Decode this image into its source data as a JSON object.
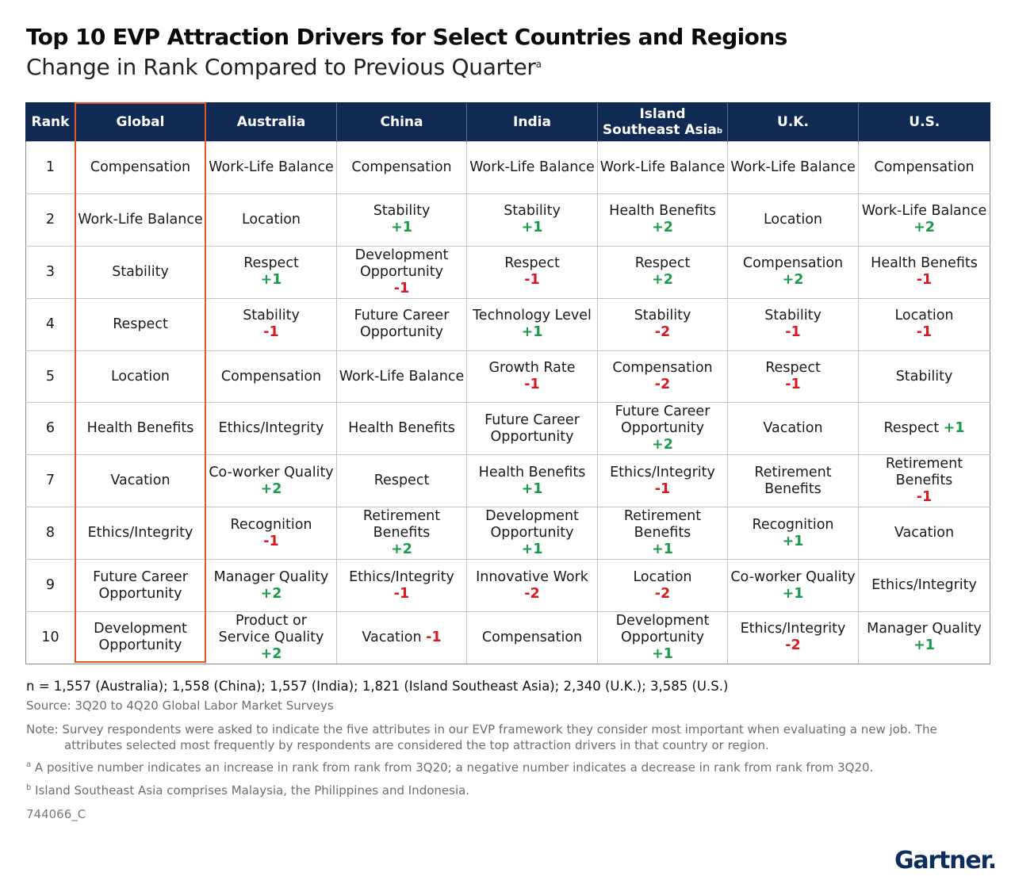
{
  "title": "Top 10 EVP Attraction Drivers for Select Countries and Regions",
  "subtitle": "Change in Rank Compared to Previous Quarter",
  "subtitle_marker": "a",
  "headers": [
    "Rank",
    "Global",
    "Australia",
    "China",
    "India",
    "Island Southeast Asia",
    "U.K.",
    "U.S."
  ],
  "header_isa_line1": "Island",
  "header_isa_line2": "Southeast Asia",
  "header_isa_marker": "b",
  "rows": [
    {
      "rank": "1",
      "global": "Compensation",
      "cells": [
        {
          "text": "Work-Life Balance",
          "change": ""
        },
        {
          "text": "Compensation",
          "change": ""
        },
        {
          "text": "Work-Life Balance",
          "change": ""
        },
        {
          "text": "Work-Life Balance",
          "change": ""
        },
        {
          "text": "Work-Life Balance",
          "change": ""
        },
        {
          "text": "Compensation",
          "change": ""
        }
      ]
    },
    {
      "rank": "2",
      "global": "Work-Life Balance",
      "cells": [
        {
          "text": "Location",
          "change": ""
        },
        {
          "text": "Stability",
          "change": "+1"
        },
        {
          "text": "Stability",
          "change": "+1"
        },
        {
          "text": "Health Benefits",
          "change": "+2"
        },
        {
          "text": "Location",
          "change": ""
        },
        {
          "text": "Work-Life Balance",
          "change": "+2"
        }
      ]
    },
    {
      "rank": "3",
      "global": "Stability",
      "cells": [
        {
          "text": "Respect",
          "change": "+1"
        },
        {
          "text": "Development Opportunity",
          "change": "-1"
        },
        {
          "text": "Respect",
          "change": "-1"
        },
        {
          "text": "Respect",
          "change": "+2"
        },
        {
          "text": "Compensation",
          "change": "+2"
        },
        {
          "text": "Health Benefits",
          "change": "-1"
        }
      ]
    },
    {
      "rank": "4",
      "global": "Respect",
      "cells": [
        {
          "text": "Stability",
          "change": "-1"
        },
        {
          "text": "Future Career Opportunity",
          "change": ""
        },
        {
          "text": "Technology Level",
          "change": "+1"
        },
        {
          "text": "Stability",
          "change": "-2"
        },
        {
          "text": "Stability",
          "change": "-1"
        },
        {
          "text": "Location",
          "change": "-1"
        }
      ]
    },
    {
      "rank": "5",
      "global": "Location",
      "cells": [
        {
          "text": "Compensation",
          "change": ""
        },
        {
          "text": "Work-Life Balance",
          "change": ""
        },
        {
          "text": "Growth Rate",
          "change": "-1"
        },
        {
          "text": "Compensation",
          "change": "-2"
        },
        {
          "text": "Respect",
          "change": "-1"
        },
        {
          "text": "Stability",
          "change": ""
        }
      ]
    },
    {
      "rank": "6",
      "global": "Health Benefits",
      "cells": [
        {
          "text": "Ethics/Integrity",
          "change": ""
        },
        {
          "text": "Health Benefits",
          "change": ""
        },
        {
          "text": "Future Career Opportunity",
          "change": ""
        },
        {
          "text": "Future Career Opportunity",
          "change": "+2"
        },
        {
          "text": "Vacation",
          "change": ""
        },
        {
          "text": "Respect",
          "change": "+1",
          "inline": true
        }
      ]
    },
    {
      "rank": "7",
      "global": "Vacation",
      "cells": [
        {
          "text": "Co-worker Quality",
          "change": "+2"
        },
        {
          "text": "Respect",
          "change": ""
        },
        {
          "text": "Health Benefits",
          "change": "+1"
        },
        {
          "text": "Ethics/Integrity",
          "change": "-1"
        },
        {
          "text": "Retirement Benefits",
          "change": ""
        },
        {
          "text": "Retirement Benefits",
          "change": "-1"
        }
      ]
    },
    {
      "rank": "8",
      "global": "Ethics/Integrity",
      "cells": [
        {
          "text": "Recognition",
          "change": "-1"
        },
        {
          "text": "Retirement Benefits",
          "change": "+2"
        },
        {
          "text": "Development Opportunity",
          "change": "+1"
        },
        {
          "text": "Retirement Benefits",
          "change": "+1"
        },
        {
          "text": "Recognition",
          "change": "+1"
        },
        {
          "text": "Vacation",
          "change": ""
        }
      ]
    },
    {
      "rank": "9",
      "global": "Future Career Opportunity",
      "cells": [
        {
          "text": "Manager Quality",
          "change": "+2"
        },
        {
          "text": "Ethics/Integrity",
          "change": "-1"
        },
        {
          "text": "Innovative Work",
          "change": "-2"
        },
        {
          "text": "Location",
          "change": "-2"
        },
        {
          "text": "Co-worker Quality",
          "change": "+1"
        },
        {
          "text": "Ethics/Integrity",
          "change": ""
        }
      ]
    },
    {
      "rank": "10",
      "global": "Development Opportunity",
      "cells": [
        {
          "text": "Product or Service Quality",
          "change": "+2"
        },
        {
          "text": "Vacation",
          "change": "-1",
          "inline": true
        },
        {
          "text": "Compensation",
          "change": ""
        },
        {
          "text": "Development Opportunity",
          "change": "+1"
        },
        {
          "text": "Ethics/Integrity",
          "change": "-2"
        },
        {
          "text": "Manager Quality",
          "change": "+1"
        }
      ]
    }
  ],
  "n_line": "n = 1,557 (Australia); 1,558 (China); 1,557 (India); 1,821 (Island Southeast Asia); 2,340 (U.K.); 3,585 (U.S.)",
  "source": "Source: 3Q20 to 4Q20 Global Labor Market Surveys",
  "note": "Note: Survey respondents were asked to indicate the five attributes in our EVP framework they consider most important when evaluating a new job. The attributes selected most frequently by respondents are considered the top attraction drivers in that country or region.",
  "footnote_a_marker": "a",
  "footnote_a": " A positive number indicates an increase in rank from rank from 3Q20; a negative number indicates a decrease in rank from rank from 3Q20.",
  "footnote_b_marker": "b",
  "footnote_b": " Island Southeast Asia comprises Malaysia, the Philippines and Indonesia.",
  "code": "744066_C",
  "logo": "Gartner.",
  "colors": {
    "header_bg": "#112a53",
    "positive": "#1a9a4a",
    "negative": "#d71920",
    "global_highlight": "#e0572b",
    "logo": "#0d2e5c"
  }
}
